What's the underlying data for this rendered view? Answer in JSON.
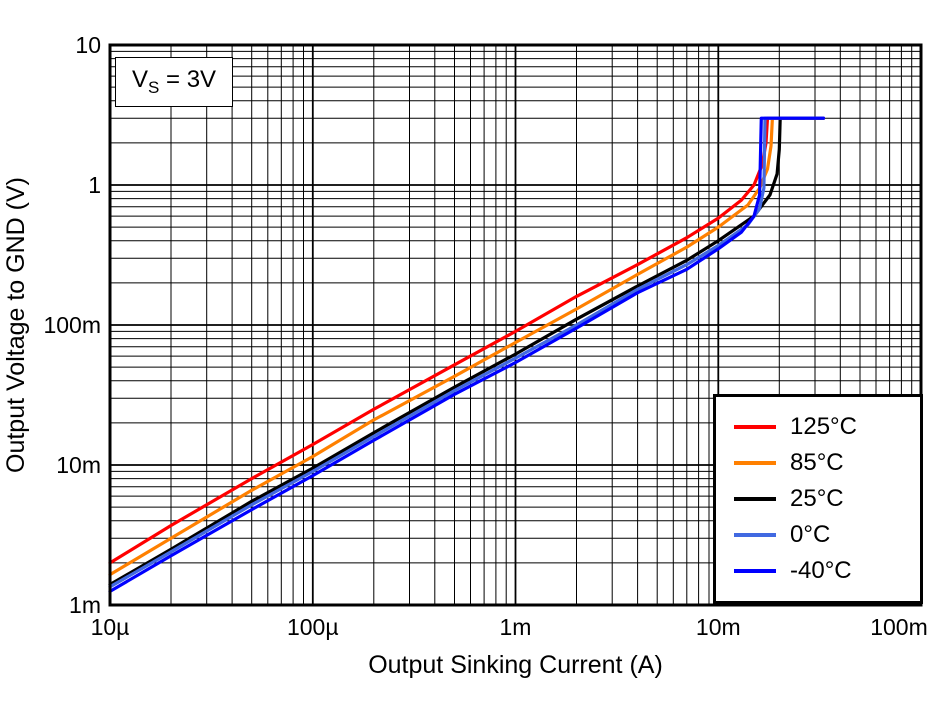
{
  "chart_data": {
    "type": "line",
    "title": "",
    "xlabel": "Output Sinking Current (A)",
    "ylabel": "Output Voltage to GND (V)",
    "x_scale": "log",
    "y_scale": "log",
    "xlim": [
      1e-05,
      0.1
    ],
    "ylim": [
      0.001,
      10
    ],
    "grid": "log major and minor, black lines",
    "legend_position": "right-center-inside",
    "annotation": {
      "pre": "V",
      "sub": "S",
      "post": " = 3V"
    },
    "x_ticks": [
      {
        "value": 1e-05,
        "label": "10µ"
      },
      {
        "value": 0.0001,
        "label": "100µ"
      },
      {
        "value": 0.001,
        "label": "1m"
      },
      {
        "value": 0.01,
        "label": "10m"
      },
      {
        "value": 0.1,
        "label": "100m"
      }
    ],
    "y_ticks": [
      {
        "value": 0.001,
        "label": "1m"
      },
      {
        "value": 0.01,
        "label": "10m"
      },
      {
        "value": 0.1,
        "label": "100m"
      },
      {
        "value": 1,
        "label": "1"
      },
      {
        "value": 10,
        "label": "10"
      }
    ],
    "series": [
      {
        "name": "125°C",
        "color": "#FF0000",
        "points": [
          [
            1e-05,
            0.002
          ],
          [
            2e-05,
            0.0037
          ],
          [
            5e-05,
            0.008
          ],
          [
            0.0001,
            0.014
          ],
          [
            0.0002,
            0.025
          ],
          [
            0.0005,
            0.052
          ],
          [
            0.001,
            0.09
          ],
          [
            0.002,
            0.16
          ],
          [
            0.004,
            0.27
          ],
          [
            0.007,
            0.42
          ],
          [
            0.01,
            0.58
          ],
          [
            0.013,
            0.78
          ],
          [
            0.015,
            1.0
          ],
          [
            0.0165,
            1.4
          ],
          [
            0.0172,
            2.0
          ],
          [
            0.0175,
            3.0
          ],
          [
            0.033,
            3.0
          ]
        ]
      },
      {
        "name": "85°C",
        "color": "#FF8000",
        "points": [
          [
            1e-05,
            0.00165
          ],
          [
            2e-05,
            0.003
          ],
          [
            5e-05,
            0.0066
          ],
          [
            0.0001,
            0.0115
          ],
          [
            0.0002,
            0.021
          ],
          [
            0.0005,
            0.043
          ],
          [
            0.001,
            0.075
          ],
          [
            0.002,
            0.13
          ],
          [
            0.004,
            0.23
          ],
          [
            0.007,
            0.36
          ],
          [
            0.01,
            0.5
          ],
          [
            0.014,
            0.72
          ],
          [
            0.016,
            0.95
          ],
          [
            0.0175,
            1.3
          ],
          [
            0.0182,
            1.9
          ],
          [
            0.0185,
            3.0
          ],
          [
            0.033,
            3.0
          ]
        ]
      },
      {
        "name": "25°C",
        "color": "#000000",
        "points": [
          [
            1e-05,
            0.0014
          ],
          [
            2e-05,
            0.0025
          ],
          [
            5e-05,
            0.0055
          ],
          [
            0.0001,
            0.0095
          ],
          [
            0.0002,
            0.017
          ],
          [
            0.0005,
            0.036
          ],
          [
            0.001,
            0.062
          ],
          [
            0.002,
            0.11
          ],
          [
            0.004,
            0.19
          ],
          [
            0.007,
            0.29
          ],
          [
            0.01,
            0.4
          ],
          [
            0.015,
            0.6
          ],
          [
            0.018,
            0.85
          ],
          [
            0.0195,
            1.2
          ],
          [
            0.02,
            1.8
          ],
          [
            0.0202,
            3.0
          ],
          [
            0.033,
            3.0
          ]
        ]
      },
      {
        "name": "0°C",
        "color": "#4169E1",
        "points": [
          [
            1e-05,
            0.00135
          ],
          [
            2e-05,
            0.0024
          ],
          [
            5e-05,
            0.0052
          ],
          [
            0.0001,
            0.009
          ],
          [
            0.0002,
            0.016
          ],
          [
            0.0005,
            0.034
          ],
          [
            0.001,
            0.058
          ],
          [
            0.002,
            0.1
          ],
          [
            0.004,
            0.18
          ],
          [
            0.007,
            0.27
          ],
          [
            0.01,
            0.37
          ],
          [
            0.014,
            0.52
          ],
          [
            0.016,
            0.68
          ],
          [
            0.0168,
            0.95
          ],
          [
            0.017,
            3.0
          ],
          [
            0.033,
            3.0
          ]
        ]
      },
      {
        "name": "-40°C",
        "color": "#0000FF",
        "points": [
          [
            1e-05,
            0.00125
          ],
          [
            2e-05,
            0.00225
          ],
          [
            5e-05,
            0.0048
          ],
          [
            0.0001,
            0.0084
          ],
          [
            0.0002,
            0.015
          ],
          [
            0.0005,
            0.032
          ],
          [
            0.001,
            0.054
          ],
          [
            0.002,
            0.095
          ],
          [
            0.004,
            0.17
          ],
          [
            0.007,
            0.25
          ],
          [
            0.01,
            0.35
          ],
          [
            0.013,
            0.46
          ],
          [
            0.015,
            0.6
          ],
          [
            0.016,
            0.85
          ],
          [
            0.0163,
            3.0
          ],
          [
            0.033,
            3.0
          ]
        ]
      }
    ]
  }
}
